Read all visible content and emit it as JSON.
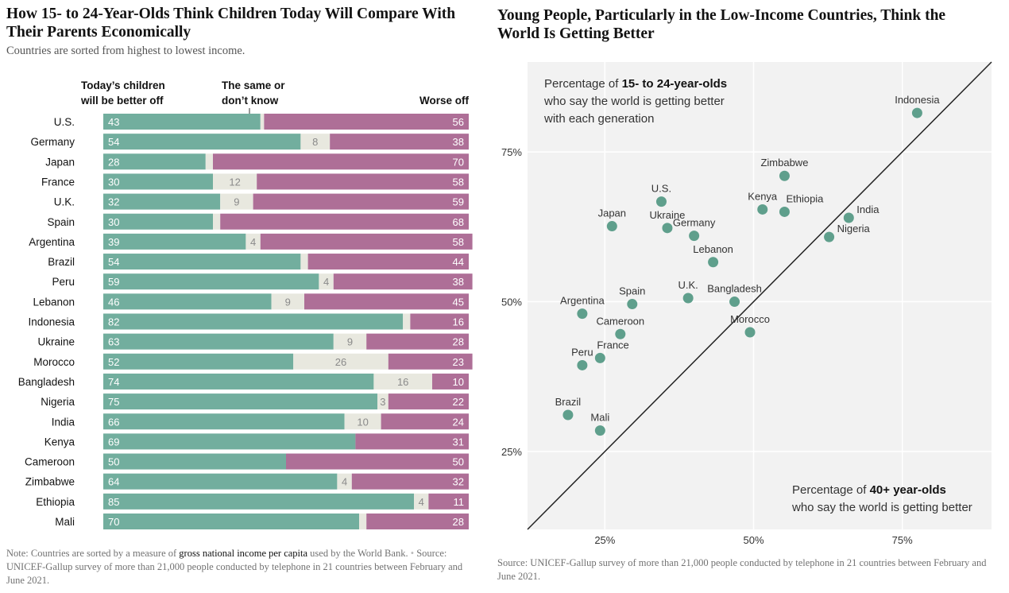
{
  "left": {
    "title": "How 15- to 24-Year-Olds Think Children Today Will Compare With Their Parents Economically",
    "subtitle": "Countries are sorted from highest to lowest income.",
    "col_better": "Today’s children will be better off",
    "col_same": "The same or don’t know",
    "col_worse": "Worse off",
    "note_prefix": "Note: Countries are sorted by a measure of",
    "note_link": "gross national income per capita",
    "note_suffix": "used by the World Bank.",
    "source": "Source: UNICEF-Gallup survey of more than 21,000 people conducted by telephone in 21 countries between February and June 2021."
  },
  "right": {
    "title": "Young People, Particularly in the Low-Income Countries, Think the World Is Getting Better",
    "y_annot_pre": "Percentage of",
    "y_annot_bold": "15- to 24-year-olds",
    "y_annot_line2": "who say the world is getting better",
    "y_annot_line3": "with each generation",
    "x_annot_pre": "Percentage of",
    "x_annot_bold": "40+ year-olds",
    "x_annot_line2": "who say the world is getting better",
    "source": "Source: UNICEF-Gallup survey of more than 21,000 people conducted by telephone in 21 countries between February and June 2021."
  },
  "colors": {
    "better": "#72ae9e",
    "same": "#e8e8df",
    "worse": "#ae6f97",
    "dot": "#5f9f8c",
    "plot_bg": "#f2f2f2"
  },
  "chart_data": [
    {
      "type": "bar",
      "orientation": "horizontal",
      "stacked": true,
      "categories": [
        "U.S.",
        "Germany",
        "Japan",
        "France",
        "U.K.",
        "Spain",
        "Argentina",
        "Brazil",
        "Peru",
        "Lebanon",
        "Indonesia",
        "Ukraine",
        "Morocco",
        "Bangladesh",
        "Nigeria",
        "India",
        "Kenya",
        "Cameroon",
        "Zimbabwe",
        "Ethiopia",
        "Mali"
      ],
      "series": [
        {
          "name": "Today’s children will be better off",
          "values": [
            43,
            54,
            28,
            30,
            32,
            30,
            39,
            54,
            59,
            46,
            82,
            63,
            52,
            74,
            75,
            66,
            69,
            50,
            64,
            85,
            70
          ]
        },
        {
          "name": "The same or don’t know",
          "values": [
            1,
            8,
            2,
            12,
            9,
            2,
            4,
            2,
            4,
            9,
            2,
            9,
            26,
            16,
            3,
            10,
            0,
            0,
            4,
            4,
            2
          ]
        },
        {
          "name": "Worse off",
          "values": [
            56,
            38,
            70,
            58,
            59,
            68,
            58,
            44,
            38,
            45,
            16,
            28,
            23,
            10,
            22,
            24,
            31,
            50,
            32,
            11,
            28
          ]
        }
      ],
      "same_label_shown": [
        false,
        true,
        false,
        true,
        true,
        false,
        true,
        false,
        true,
        true,
        false,
        true,
        true,
        true,
        true,
        true,
        false,
        false,
        true,
        true,
        false
      ],
      "xlim": [
        0,
        100
      ]
    },
    {
      "type": "scatter",
      "xlim": [
        12,
        90
      ],
      "ylim": [
        12,
        90
      ],
      "xticks": [
        "25%",
        "50%",
        "75%"
      ],
      "yticks": [
        "75%",
        "50%",
        "25%"
      ],
      "grid": true,
      "diagonal": "y = x",
      "points": [
        {
          "label": "Indonesia",
          "x": 77.5,
          "y": 81.5
        },
        {
          "label": "Zimbabwe",
          "x": 55.2,
          "y": 71
        },
        {
          "label": "U.S.",
          "x": 34.5,
          "y": 66.7
        },
        {
          "label": "Kenya",
          "x": 51.5,
          "y": 65.4
        },
        {
          "label": "Ethiopia",
          "x": 55.2,
          "y": 65
        },
        {
          "label": "India",
          "x": 66,
          "y": 64
        },
        {
          "label": "Japan",
          "x": 26.2,
          "y": 62.6
        },
        {
          "label": "Ukraine",
          "x": 35.5,
          "y": 62.3
        },
        {
          "label": "Germany",
          "x": 40,
          "y": 61
        },
        {
          "label": "Nigeria",
          "x": 62.7,
          "y": 60.8
        },
        {
          "label": "Lebanon",
          "x": 43.2,
          "y": 56.6
        },
        {
          "label": "U.K.",
          "x": 39,
          "y": 50.6
        },
        {
          "label": "Bangladesh",
          "x": 46.8,
          "y": 50
        },
        {
          "label": "Spain",
          "x": 29.6,
          "y": 49.6
        },
        {
          "label": "Argentina",
          "x": 21.2,
          "y": 48
        },
        {
          "label": "Morocco",
          "x": 49.4,
          "y": 44.9
        },
        {
          "label": "Cameroon",
          "x": 27.6,
          "y": 44.6
        },
        {
          "label": "France",
          "x": 24.2,
          "y": 40.6
        },
        {
          "label": "Peru",
          "x": 21.2,
          "y": 39.4
        },
        {
          "label": "Brazil",
          "x": 18.8,
          "y": 31.1
        },
        {
          "label": "Mali",
          "x": 24.2,
          "y": 28.5
        }
      ]
    }
  ]
}
